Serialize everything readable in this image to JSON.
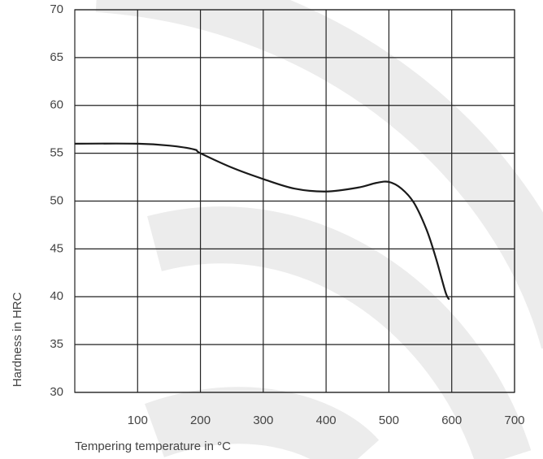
{
  "chart_data": {
    "type": "line",
    "x_label": "Tempering temperature in °C",
    "y_label": "Hardness in HRC",
    "x": [
      0,
      100,
      150,
      190,
      200,
      250,
      300,
      350,
      400,
      450,
      480,
      500,
      520,
      540,
      560,
      575,
      590,
      596
    ],
    "values": [
      56,
      56,
      55.8,
      55.4,
      55,
      53.5,
      52.3,
      51.3,
      51,
      51.4,
      51.9,
      52,
      51.3,
      49.8,
      47,
      44,
      40.5,
      39.7
    ],
    "color": "#1a1a1a",
    "xlim": [
      0,
      700
    ],
    "xticks": [
      100,
      200,
      300,
      400,
      500,
      600,
      700
    ],
    "ylim": [
      30,
      70
    ],
    "yticks": [
      30,
      35,
      40,
      45,
      50,
      55,
      60,
      65,
      70
    ],
    "grid": true
  }
}
